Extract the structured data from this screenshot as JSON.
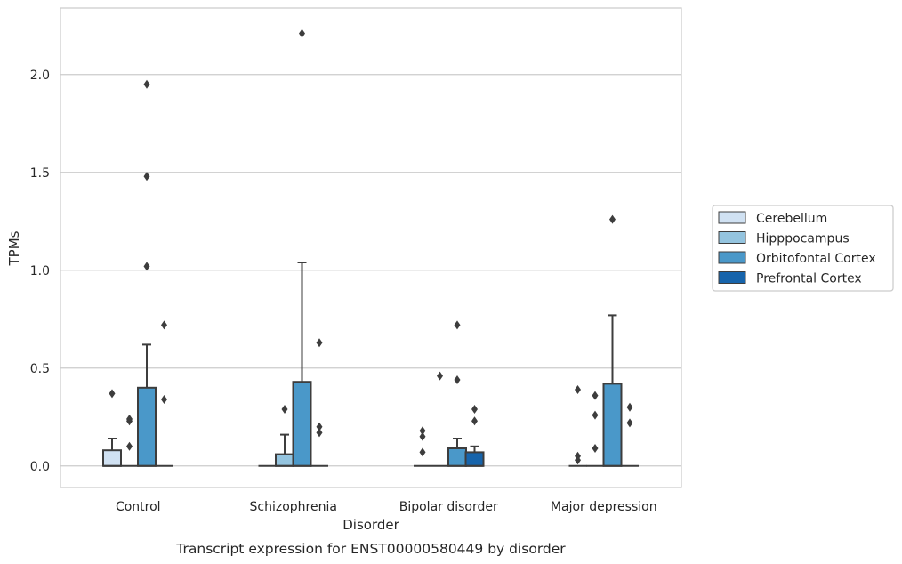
{
  "chart_data": {
    "type": "box",
    "xlabel": "Disorder",
    "ylabel": "TPMs",
    "caption": "Transcript expression for ENST00000580449 by disorder",
    "categories": [
      "Control",
      "Schizophrenia",
      "Bipolar disorder",
      "Major depression"
    ],
    "ylim": [
      -0.11,
      2.34
    ],
    "yticks": [
      0.0,
      0.5,
      1.0,
      1.5,
      2.0
    ],
    "ytick_labels": [
      "0.0",
      "0.5",
      "1.0",
      "1.5",
      "2.0"
    ],
    "grid": "horizontal",
    "legend_position": "right",
    "series": [
      {
        "name": "Cerebellum",
        "color": "#d0e1f2",
        "boxes": [
          {
            "q1": 0.0,
            "median": 0.0,
            "q3": 0.08,
            "whisker_low": 0.0,
            "whisker_high": 0.14,
            "outliers": [
              0.37
            ]
          },
          {
            "q1": 0.0,
            "median": 0.0,
            "q3": 0.0,
            "whisker_low": 0.0,
            "whisker_high": 0.0,
            "outliers": []
          },
          {
            "q1": 0.0,
            "median": 0.0,
            "q3": 0.0,
            "whisker_low": 0.0,
            "whisker_high": 0.0,
            "outliers": [
              0.07,
              0.15,
              0.18
            ]
          },
          {
            "q1": 0.0,
            "median": 0.0,
            "q3": 0.0,
            "whisker_low": 0.0,
            "whisker_high": 0.0,
            "outliers": [
              0.03,
              0.05,
              0.39
            ]
          }
        ]
      },
      {
        "name": "Hipppocampus",
        "color": "#94c4df",
        "boxes": [
          {
            "q1": 0.0,
            "median": 0.0,
            "q3": 0.0,
            "whisker_low": 0.0,
            "whisker_high": 0.0,
            "outliers": [
              0.1,
              0.23,
              0.24
            ]
          },
          {
            "q1": 0.0,
            "median": 0.0,
            "q3": 0.06,
            "whisker_low": 0.0,
            "whisker_high": 0.16,
            "outliers": [
              0.29
            ]
          },
          {
            "q1": 0.0,
            "median": 0.0,
            "q3": 0.0,
            "whisker_low": 0.0,
            "whisker_high": 0.0,
            "outliers": [
              0.46
            ]
          },
          {
            "q1": 0.0,
            "median": 0.0,
            "q3": 0.0,
            "whisker_low": 0.0,
            "whisker_high": 0.0,
            "outliers": [
              0.09,
              0.26,
              0.36
            ]
          }
        ]
      },
      {
        "name": "Orbitofontal Cortex",
        "color": "#4a98c9",
        "boxes": [
          {
            "q1": 0.0,
            "median": 0.0,
            "q3": 0.4,
            "whisker_low": 0.0,
            "whisker_high": 0.62,
            "outliers": [
              1.02,
              1.48,
              1.95
            ]
          },
          {
            "q1": 0.0,
            "median": 0.0,
            "q3": 0.43,
            "whisker_low": 0.0,
            "whisker_high": 1.04,
            "outliers": [
              2.21
            ]
          },
          {
            "q1": 0.0,
            "median": 0.0,
            "q3": 0.09,
            "whisker_low": 0.0,
            "whisker_high": 0.14,
            "outliers": [
              0.44,
              0.72
            ]
          },
          {
            "q1": 0.0,
            "median": 0.0,
            "q3": 0.42,
            "whisker_low": 0.0,
            "whisker_high": 0.77,
            "outliers": [
              1.26
            ]
          }
        ]
      },
      {
        "name": "Prefrontal Cortex",
        "color": "#1764ab",
        "boxes": [
          {
            "q1": 0.0,
            "median": 0.0,
            "q3": 0.0,
            "whisker_low": 0.0,
            "whisker_high": 0.0,
            "outliers": [
              0.34,
              0.72
            ]
          },
          {
            "q1": 0.0,
            "median": 0.0,
            "q3": 0.0,
            "whisker_low": 0.0,
            "whisker_high": 0.0,
            "outliers": [
              0.17,
              0.2,
              0.63
            ]
          },
          {
            "q1": 0.0,
            "median": 0.0,
            "q3": 0.07,
            "whisker_low": 0.0,
            "whisker_high": 0.1,
            "outliers": [
              0.23,
              0.29
            ]
          },
          {
            "q1": 0.0,
            "median": 0.0,
            "q3": 0.0,
            "whisker_low": 0.0,
            "whisker_high": 0.0,
            "outliers": [
              0.22,
              0.3
            ]
          }
        ]
      }
    ]
  }
}
